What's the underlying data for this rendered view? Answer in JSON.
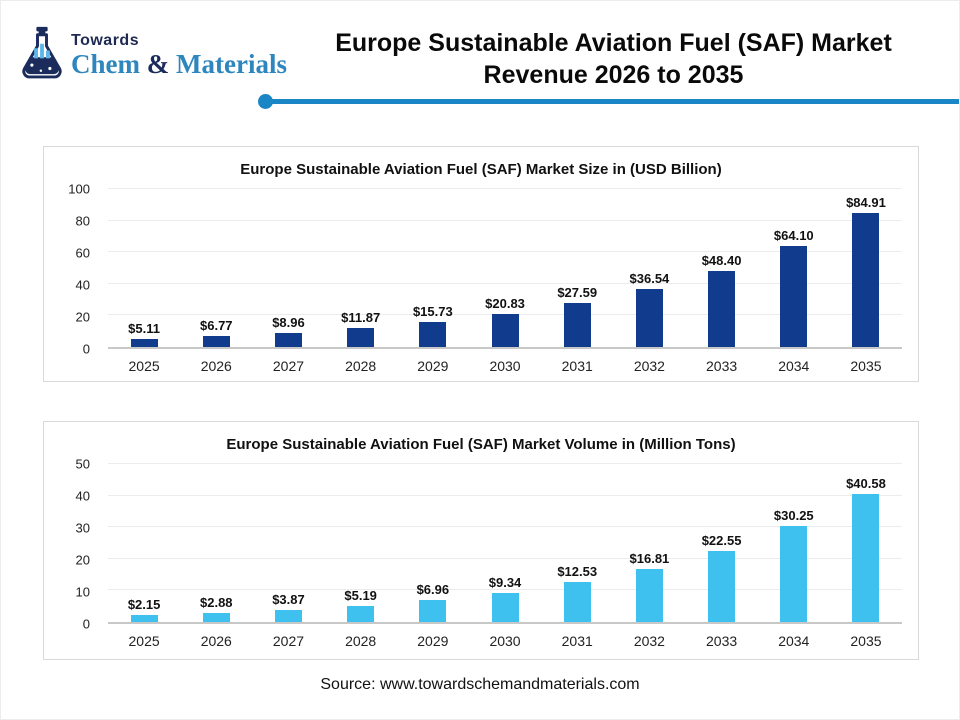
{
  "header": {
    "logo": {
      "top": "Towards",
      "brand_parts": [
        "Chem",
        "&",
        "Materials"
      ]
    },
    "title": "Europe Sustainable Aviation Fuel (SAF) Market Revenue 2026 to 2035"
  },
  "chart_data": [
    {
      "type": "bar",
      "title": "Europe Sustainable Aviation Fuel (SAF) Market Size in (USD Billion)",
      "categories": [
        "2025",
        "2026",
        "2027",
        "2028",
        "2029",
        "2030",
        "2031",
        "2032",
        "2033",
        "2034",
        "2035"
      ],
      "values": [
        5.11,
        6.77,
        8.96,
        11.87,
        15.73,
        20.83,
        27.59,
        36.54,
        48.4,
        64.1,
        84.91
      ],
      "labels": [
        "$5.11",
        "$6.77",
        "$8.96",
        "$11.87",
        "$15.73",
        "$20.83",
        "$27.59",
        "$36.54",
        "$48.40",
        "$64.10",
        "$84.91"
      ],
      "xlabel": "",
      "ylabel": "",
      "ylim": [
        0,
        100
      ],
      "yticks": [
        0,
        20,
        40,
        60,
        80,
        100
      ],
      "grid": true,
      "legend": "none",
      "bar_color": "#113c8e"
    },
    {
      "type": "bar",
      "title": "Europe Sustainable Aviation Fuel (SAF) Market Volume in (Million Tons)",
      "categories": [
        "2025",
        "2026",
        "2027",
        "2028",
        "2029",
        "2030",
        "2031",
        "2032",
        "2033",
        "2034",
        "2035"
      ],
      "values": [
        2.15,
        2.88,
        3.87,
        5.19,
        6.96,
        9.34,
        12.53,
        16.81,
        22.55,
        30.25,
        40.58
      ],
      "labels": [
        "$2.15",
        "$2.88",
        "$3.87",
        "$5.19",
        "$6.96",
        "$9.34",
        "$12.53",
        "$16.81",
        "$22.55",
        "$30.25",
        "$40.58"
      ],
      "xlabel": "",
      "ylabel": "",
      "ylim": [
        0,
        50
      ],
      "yticks": [
        0,
        10,
        20,
        30,
        40,
        50
      ],
      "grid": true,
      "legend": "none",
      "bar_color": "#3ec1ef"
    }
  ],
  "footer": {
    "source": "Source: www.towardschemandmaterials.com"
  },
  "colors": {
    "navy_bar": "#113c8e",
    "cyan_bar": "#3ec1ef",
    "accent_line": "#1b86c5",
    "brand_blue": "#2e86be",
    "brand_navy": "#1b2b5c"
  }
}
